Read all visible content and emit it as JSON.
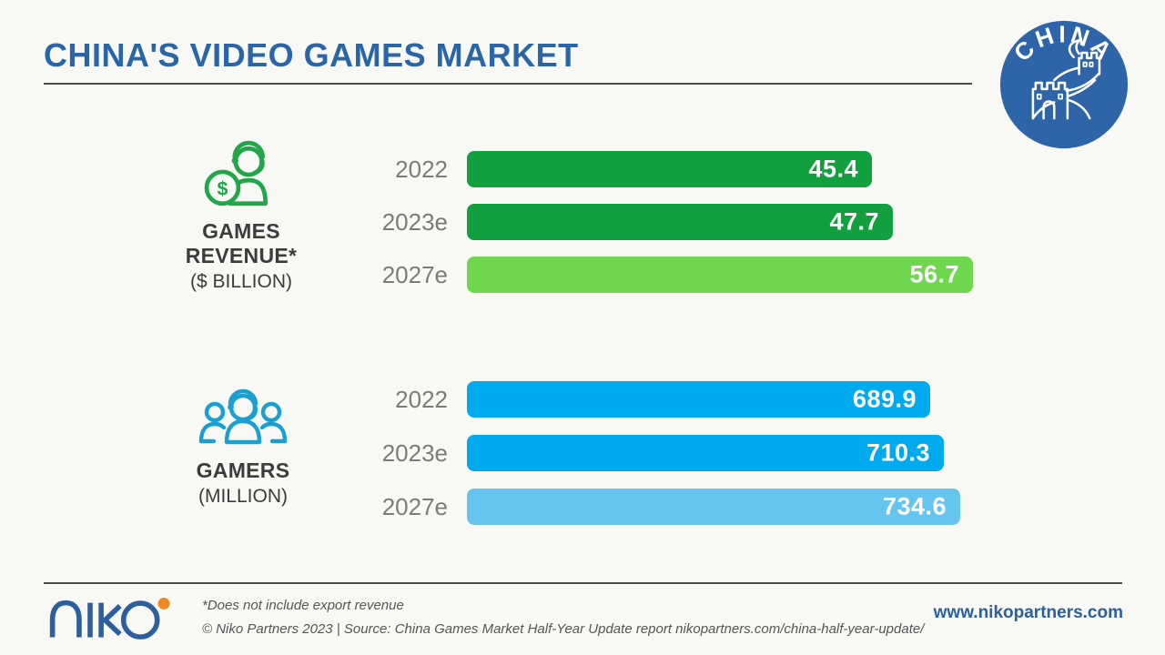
{
  "header": {
    "title": "CHINA'S VIDEO GAMES MARKET",
    "badge_label": "CHINA"
  },
  "chart_data": [
    {
      "type": "bar",
      "title": "GAMES REVENUE*",
      "unit": "($ BILLION)",
      "categories": [
        "2022",
        "2023e",
        "2027e"
      ],
      "values": [
        45.4,
        47.7,
        56.7
      ],
      "colors": [
        "#11a03d",
        "#11a03d",
        "#6ed74e"
      ],
      "xlim": [
        0,
        56.7
      ],
      "legend": "none",
      "grid": false,
      "orientation": "horizontal"
    },
    {
      "type": "bar",
      "title": "GAMERS",
      "unit": "(MILLION)",
      "categories": [
        "2022",
        "2023e",
        "2027e"
      ],
      "values": [
        689.9,
        710.3,
        734.6
      ],
      "colors": [
        "#00aaef",
        "#00aaef",
        "#66c5ee"
      ],
      "xlim": [
        0,
        734.6
      ],
      "legend": "none",
      "grid": false,
      "orientation": "horizontal"
    }
  ],
  "footer": {
    "logo_text": "niko",
    "note": "*Does not include export revenue",
    "credit": "© Niko Partners 2023 | Source: China Games Market Half-Year Update report nikopartners.com/china-half-year-update/",
    "website": "www.nikopartners.com"
  },
  "colors": {
    "title_blue": "#2a65a5",
    "badge_blue": "#2e64a8",
    "green_dark": "#11a03d",
    "green_light": "#6ed74e",
    "blue_bright": "#00aaef",
    "blue_light": "#66c5ee",
    "icon_green": "#21a64a",
    "icon_blue": "#1b9fd0",
    "logo_orange": "#f08921",
    "background": "#f8f8f5"
  }
}
